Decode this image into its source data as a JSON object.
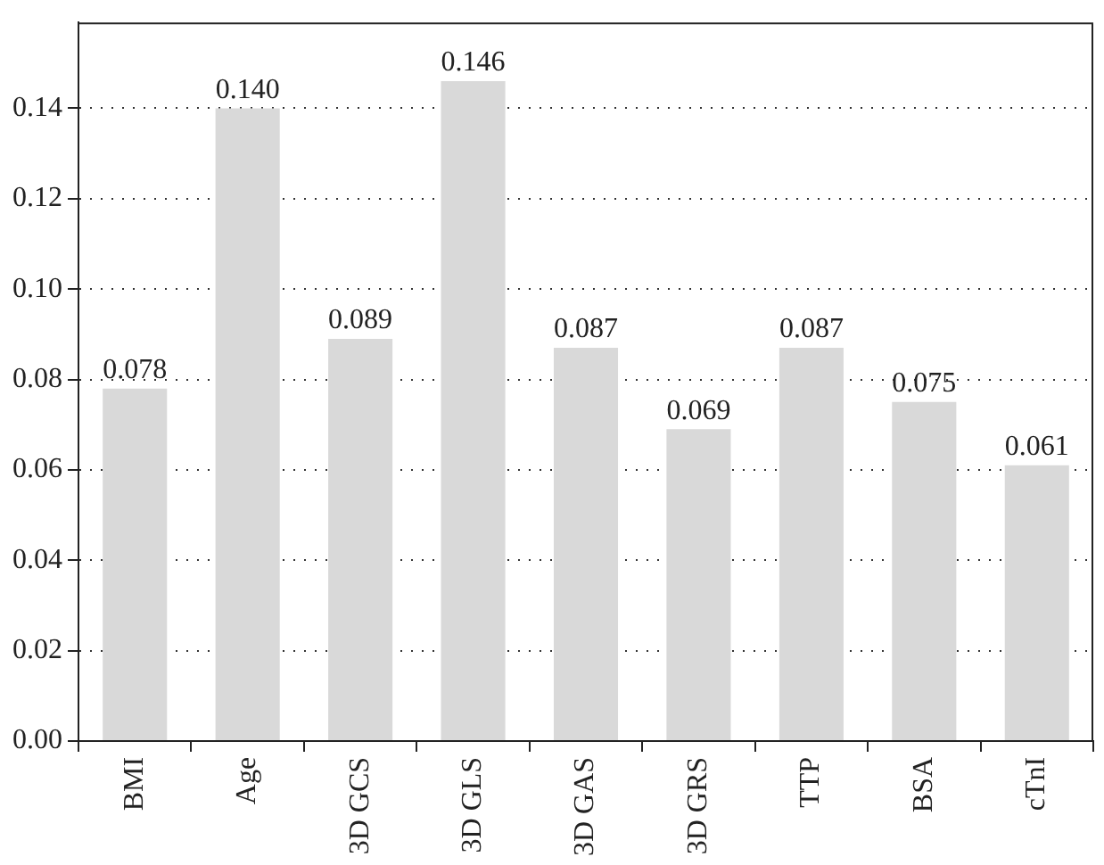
{
  "chart_data": {
    "type": "bar",
    "categories": [
      "BMI",
      "Age",
      "3D GCS",
      "3D GLS",
      "3D GAS",
      "3D GRS",
      "TTP",
      "BSA",
      "cTnI"
    ],
    "values": [
      0.078,
      0.14,
      0.089,
      0.146,
      0.087,
      0.069,
      0.087,
      0.075,
      0.061
    ],
    "value_labels": [
      "0.078",
      "0.140",
      "0.089",
      "0.146",
      "0.087",
      "0.069",
      "0.087",
      "0.075",
      "0.061"
    ],
    "color": "#d9d9d9",
    "ylim": [
      0,
      0.159
    ],
    "yticks": [
      {
        "value": 0,
        "label": "0.00"
      },
      {
        "value": 0.02,
        "label": "0.02"
      },
      {
        "value": 0.04,
        "label": "0.04"
      },
      {
        "value": 0.06,
        "label": "0.06"
      },
      {
        "value": 0.08,
        "label": "0.08"
      },
      {
        "value": 0.1,
        "label": "0.10"
      },
      {
        "value": 0.12,
        "label": "0.12"
      },
      {
        "value": 0.14,
        "label": "0.14"
      }
    ],
    "grid": "y",
    "legend": false
  }
}
